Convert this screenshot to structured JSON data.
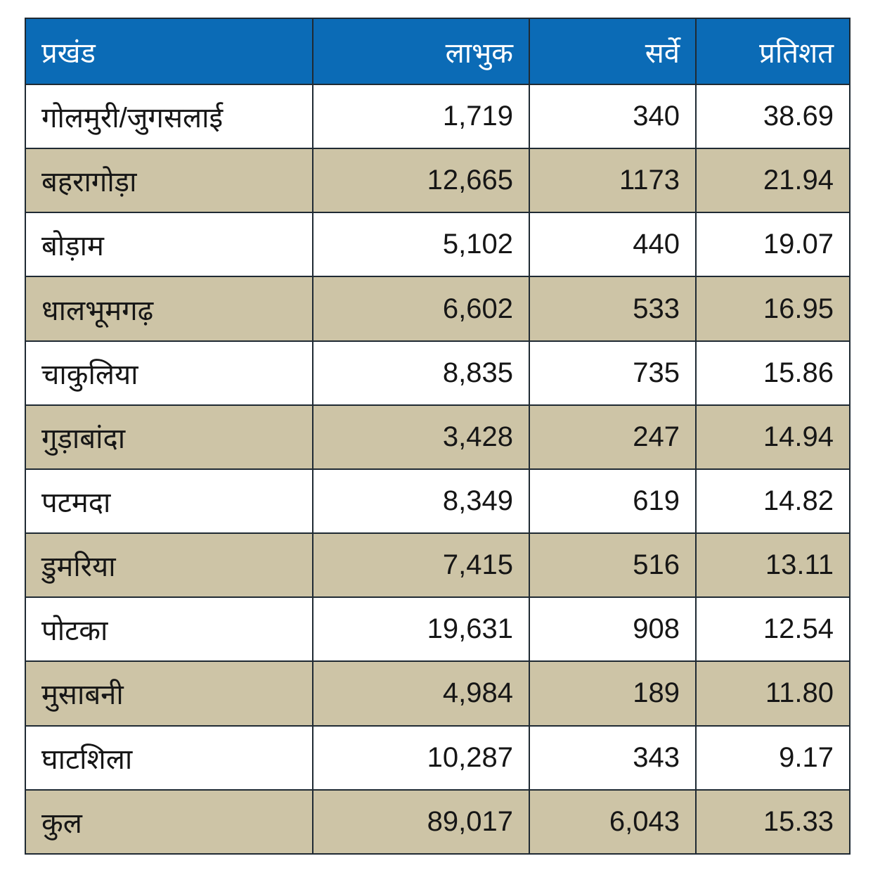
{
  "table": {
    "headers": [
      "प्रखंड",
      "लाभुक",
      "सर्वे",
      "प्रतिशत"
    ],
    "rows": [
      [
        "गोलमुरी/जुगसलाई",
        "1,719",
        "340",
        "38.69"
      ],
      [
        "बहरागोड़ा",
        "12,665",
        "1173",
        "21.94"
      ],
      [
        "बोड़ाम",
        "5,102",
        "440",
        "19.07"
      ],
      [
        "धालभूमगढ़",
        "6,602",
        "533",
        "16.95"
      ],
      [
        "चाकुलिया",
        "8,835",
        "735",
        "15.86"
      ],
      [
        "गुड़ाबांदा",
        "3,428",
        "247",
        "14.94"
      ],
      [
        "पटमदा",
        "8,349",
        "619",
        "14.82"
      ],
      [
        "डुमरिया",
        "7,415",
        "516",
        "13.11"
      ],
      [
        "पोटका",
        "19,631",
        "908",
        "12.54"
      ],
      [
        "मुसाबनी",
        "4,984",
        "189",
        "11.80"
      ],
      [
        "घाटशिला",
        "10,287",
        "343",
        "9.17"
      ],
      [
        "कुल",
        "89,017",
        "6,043",
        "15.33"
      ]
    ]
  },
  "colors": {
    "header": "#0b6bb6",
    "alt_row": "#cdc4a6",
    "border": "#1f2a33"
  }
}
